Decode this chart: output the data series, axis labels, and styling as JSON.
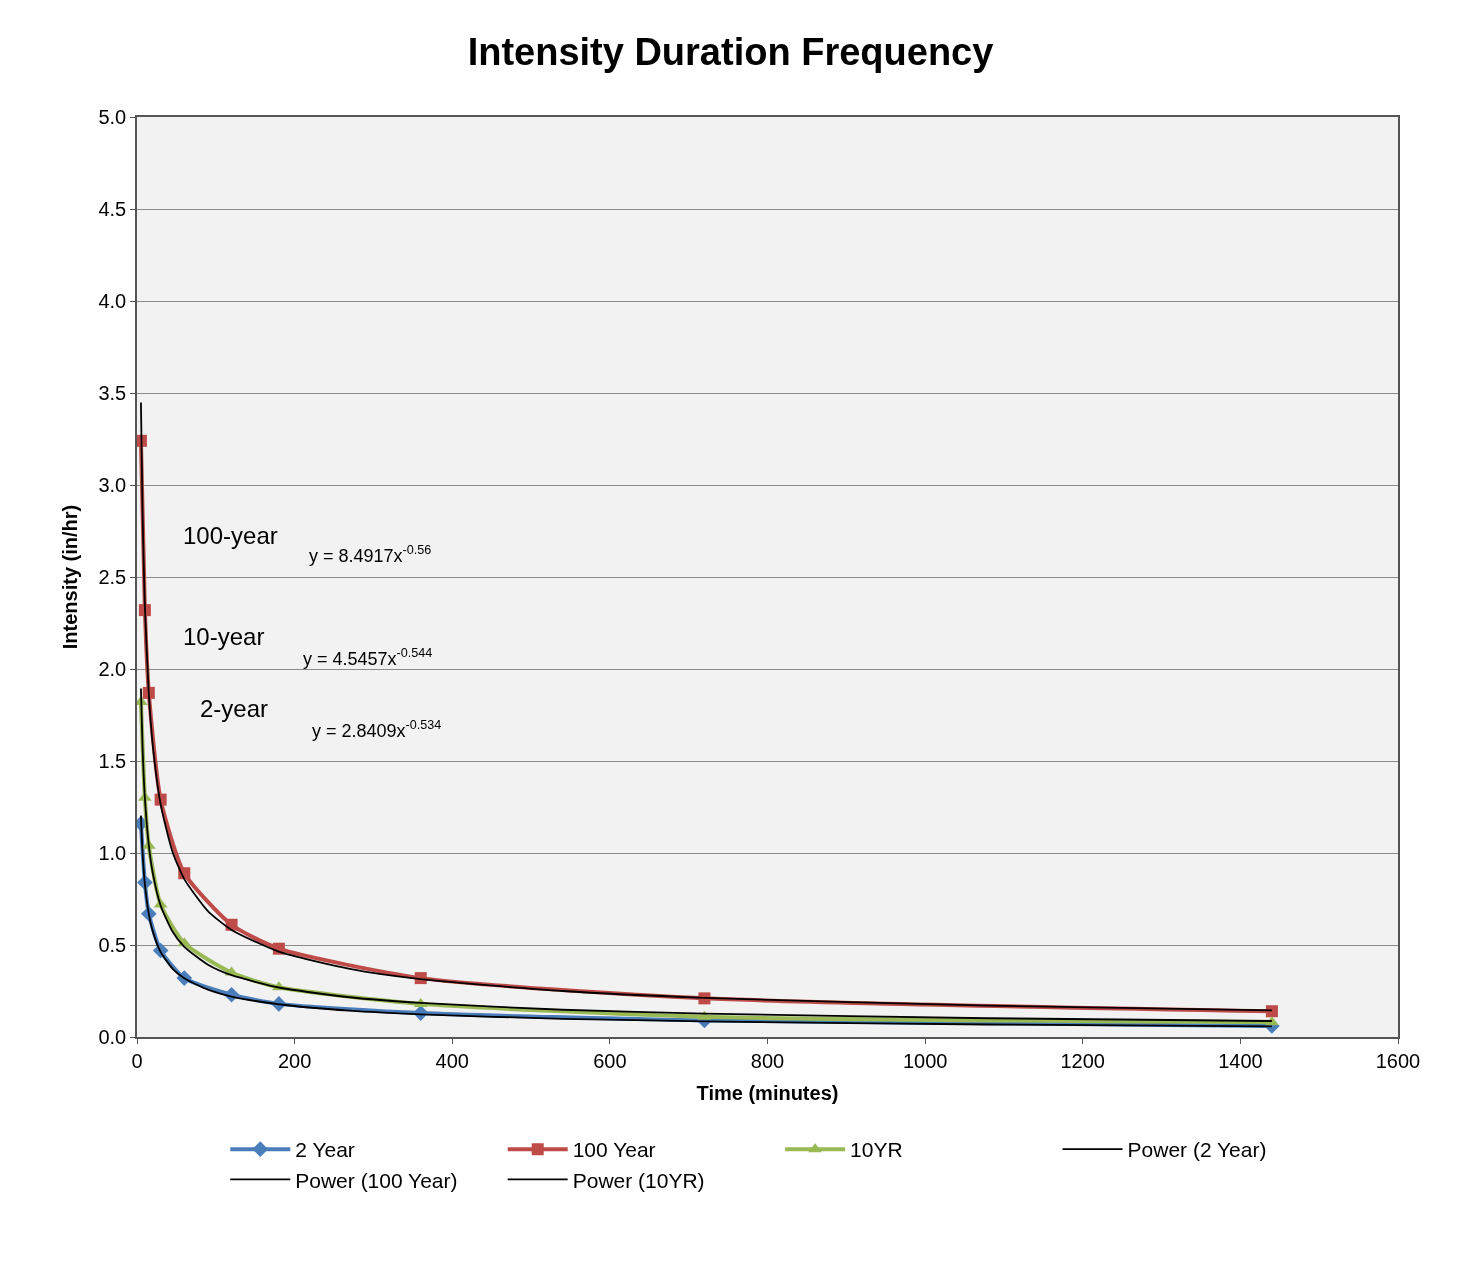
{
  "chart_data": {
    "type": "line",
    "title": "Intensity Duration Frequency",
    "xlabel": "Time (minutes)",
    "ylabel": "Intensity (in/hr)",
    "xlim": [
      0,
      1600
    ],
    "xticks": [
      0,
      200,
      400,
      600,
      800,
      1000,
      1200,
      1400,
      1600
    ],
    "ylim": [
      0,
      5.0
    ],
    "yticks": [
      {
        "value": 0,
        "label": "0.0"
      },
      {
        "value": 0.5,
        "label": "0.5"
      },
      {
        "value": 1,
        "label": "1.0"
      },
      {
        "value": 1.5,
        "label": "1.5"
      },
      {
        "value": 2,
        "label": "2.0"
      },
      {
        "value": 2.5,
        "label": "2.5"
      },
      {
        "value": 3,
        "label": "3.0"
      },
      {
        "value": 3.5,
        "label": "3.5"
      },
      {
        "value": 4,
        "label": "4.0"
      },
      {
        "value": 4.5,
        "label": "4.5"
      },
      {
        "value": 5,
        "label": "5.0"
      }
    ],
    "grid": "y",
    "legend": "bottom",
    "x": [
      5,
      10,
      15,
      30,
      60,
      120,
      180,
      360,
      720,
      1440
    ],
    "series": [
      {
        "name": "2 Year",
        "color": "#4a7ebb",
        "marker": "diamond",
        "values": [
          1.16,
          0.84,
          0.67,
          0.47,
          0.32,
          0.23,
          0.18,
          0.13,
          0.09,
          0.06
        ]
      },
      {
        "name": "100 Year",
        "color": "#be4b48",
        "marker": "square",
        "values": [
          3.24,
          2.32,
          1.87,
          1.29,
          0.89,
          0.61,
          0.48,
          0.32,
          0.21,
          0.14
        ]
      },
      {
        "name": "10YR",
        "color": "#98b954",
        "marker": "triangle",
        "values": [
          1.82,
          1.3,
          1.04,
          0.72,
          0.51,
          0.35,
          0.27,
          0.18,
          0.11,
          0.08
        ]
      },
      {
        "name": "Power (2 Year)",
        "color": "#000000",
        "marker": "none",
        "x": [
          5,
          7,
          10,
          15,
          20,
          30,
          45,
          60,
          90,
          120,
          180,
          270,
          360,
          540,
          720,
          1080,
          1440
        ],
        "values": [
          1.203,
          1.005,
          0.831,
          0.669,
          0.574,
          0.462,
          0.372,
          0.319,
          0.257,
          0.22,
          0.178,
          0.143,
          0.123,
          0.099,
          0.085,
          0.068,
          0.058
        ]
      },
      {
        "name": "Power (100 Year)",
        "color": "#000000",
        "marker": "none",
        "x": [
          5,
          7,
          10,
          15,
          20,
          30,
          45,
          60,
          90,
          120,
          180,
          270,
          360,
          540,
          720,
          1080,
          1440
        ],
        "values": [
          3.448,
          2.856,
          2.339,
          1.864,
          1.586,
          1.264,
          1.007,
          0.858,
          0.684,
          0.582,
          0.464,
          0.37,
          0.314,
          0.25,
          0.213,
          0.17,
          0.145
        ]
      },
      {
        "name": "Power (10YR)",
        "color": "#000000",
        "marker": "none",
        "x": [
          5,
          7,
          10,
          15,
          20,
          30,
          45,
          60,
          90,
          120,
          180,
          270,
          360,
          540,
          720,
          1080,
          1440
        ],
        "values": [
          1.894,
          1.577,
          1.299,
          1.042,
          0.891,
          0.715,
          0.573,
          0.49,
          0.393,
          0.336,
          0.269,
          0.216,
          0.185,
          0.148,
          0.127,
          0.102,
          0.087
        ]
      }
    ],
    "annotations": [
      "100-year",
      "y = 8.4917x$^{-0.56}$",
      "10-year",
      "y = 4.5457x$^{-0.544}$",
      "2-year",
      "y = 2.8409x$^{-0.534}$"
    ]
  }
}
